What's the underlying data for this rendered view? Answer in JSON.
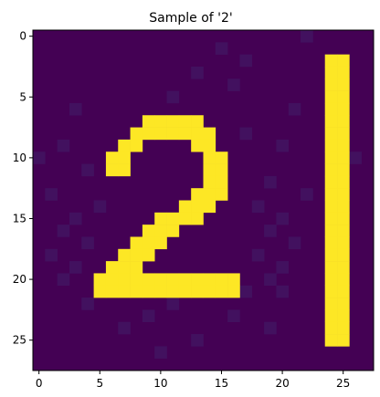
{
  "chart_data": {
    "type": "heatmap",
    "title": "Sample of '2'",
    "xlabel": "",
    "ylabel": "",
    "colormap": "viridis",
    "colors": {
      "background": "#440154",
      "foreground": "#fde725",
      "axis": "#000000"
    },
    "value_range": [
      0,
      1
    ],
    "xlim": [
      -0.5,
      27.5
    ],
    "ylim": [
      27.5,
      -0.5
    ],
    "x_ticks": [
      0,
      5,
      10,
      15,
      20,
      25
    ],
    "y_ticks": [
      0,
      5,
      10,
      15,
      20,
      25
    ],
    "grid": false,
    "legend": "none",
    "background_value": 0,
    "foreground_value": 1,
    "noise_value": 0.05,
    "foreground_pixels": [
      [
        7,
        9
      ],
      [
        7,
        10
      ],
      [
        7,
        11
      ],
      [
        7,
        12
      ],
      [
        7,
        13
      ],
      [
        8,
        8
      ],
      [
        8,
        9
      ],
      [
        8,
        10
      ],
      [
        8,
        11
      ],
      [
        8,
        12
      ],
      [
        8,
        13
      ],
      [
        8,
        14
      ],
      [
        9,
        7
      ],
      [
        9,
        8
      ],
      [
        9,
        13
      ],
      [
        9,
        14
      ],
      [
        10,
        6
      ],
      [
        10,
        7
      ],
      [
        10,
        14
      ],
      [
        10,
        15
      ],
      [
        11,
        6
      ],
      [
        11,
        7
      ],
      [
        11,
        14
      ],
      [
        11,
        15
      ],
      [
        12,
        14
      ],
      [
        12,
        15
      ],
      [
        13,
        13
      ],
      [
        13,
        14
      ],
      [
        13,
        15
      ],
      [
        14,
        12
      ],
      [
        14,
        13
      ],
      [
        14,
        14
      ],
      [
        15,
        10
      ],
      [
        15,
        11
      ],
      [
        15,
        12
      ],
      [
        15,
        13
      ],
      [
        16,
        9
      ],
      [
        16,
        10
      ],
      [
        16,
        11
      ],
      [
        17,
        8
      ],
      [
        17,
        9
      ],
      [
        17,
        10
      ],
      [
        18,
        7
      ],
      [
        18,
        8
      ],
      [
        18,
        9
      ],
      [
        19,
        6
      ],
      [
        19,
        7
      ],
      [
        19,
        8
      ],
      [
        20,
        5
      ],
      [
        20,
        6
      ],
      [
        20,
        7
      ],
      [
        20,
        8
      ],
      [
        20,
        9
      ],
      [
        20,
        10
      ],
      [
        20,
        11
      ],
      [
        20,
        12
      ],
      [
        20,
        13
      ],
      [
        20,
        14
      ],
      [
        20,
        15
      ],
      [
        20,
        16
      ],
      [
        21,
        5
      ],
      [
        21,
        6
      ],
      [
        21,
        7
      ],
      [
        21,
        8
      ],
      [
        21,
        9
      ],
      [
        21,
        10
      ],
      [
        21,
        11
      ],
      [
        21,
        12
      ],
      [
        21,
        13
      ],
      [
        21,
        14
      ],
      [
        21,
        15
      ],
      [
        21,
        16
      ]
    ],
    "foreground_column_segments": [
      {
        "col": 24,
        "row_start": 2,
        "row_end": 25
      },
      {
        "col": 25,
        "row_start": 2,
        "row_end": 25
      }
    ],
    "noise_pixels": [
      [
        0,
        22
      ],
      [
        1,
        15
      ],
      [
        2,
        17
      ],
      [
        3,
        13
      ],
      [
        3,
        24
      ],
      [
        4,
        16
      ],
      [
        5,
        11
      ],
      [
        6,
        3
      ],
      [
        6,
        21
      ],
      [
        8,
        17
      ],
      [
        9,
        2
      ],
      [
        9,
        20
      ],
      [
        10,
        0
      ],
      [
        10,
        26
      ],
      [
        11,
        4
      ],
      [
        12,
        19
      ],
      [
        13,
        1
      ],
      [
        13,
        22
      ],
      [
        14,
        5
      ],
      [
        14,
        18
      ],
      [
        15,
        3
      ],
      [
        15,
        20
      ],
      [
        16,
        2
      ],
      [
        16,
        19
      ],
      [
        17,
        4
      ],
      [
        17,
        21
      ],
      [
        18,
        1
      ],
      [
        18,
        18
      ],
      [
        19,
        3
      ],
      [
        19,
        20
      ],
      [
        20,
        2
      ],
      [
        20,
        19
      ],
      [
        21,
        17
      ],
      [
        21,
        20
      ],
      [
        22,
        4
      ],
      [
        22,
        11
      ],
      [
        23,
        9
      ],
      [
        23,
        16
      ],
      [
        24,
        7
      ],
      [
        24,
        19
      ],
      [
        25,
        13
      ],
      [
        26,
        10
      ]
    ]
  }
}
